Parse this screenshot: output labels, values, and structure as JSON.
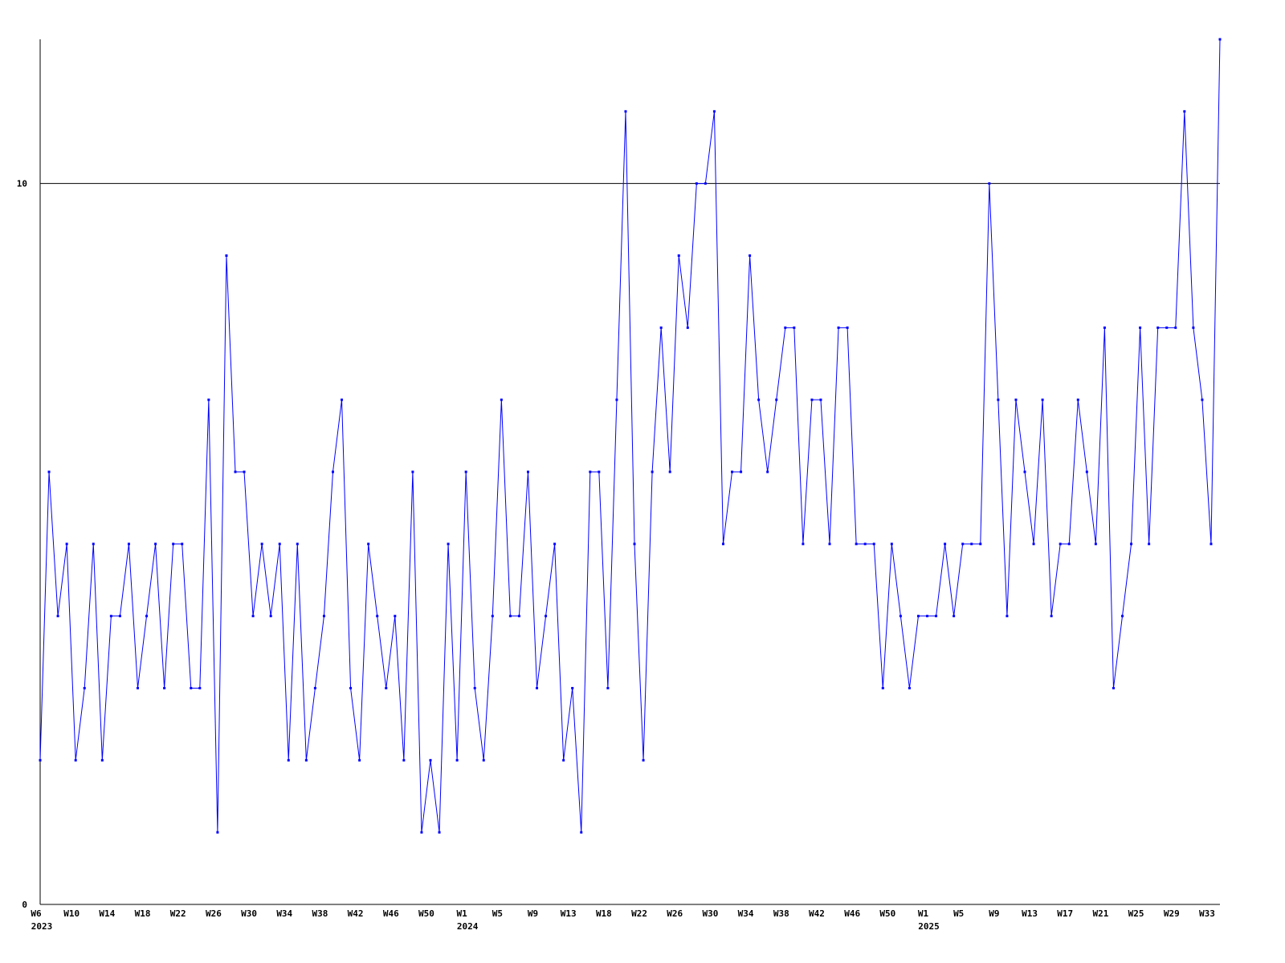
{
  "chart_data": {
    "type": "line",
    "color": "#0000ff",
    "categories": [
      "W6",
      null,
      null,
      null,
      "W10",
      null,
      null,
      null,
      "W14",
      null,
      null,
      null,
      "W18",
      null,
      null,
      null,
      "W22",
      null,
      null,
      null,
      "W26",
      null,
      null,
      null,
      "W30",
      null,
      null,
      null,
      "W34",
      null,
      null,
      null,
      "W38",
      null,
      null,
      null,
      "W42",
      null,
      null,
      null,
      "W46",
      null,
      null,
      null,
      "W50",
      null,
      null,
      null,
      "W1",
      null,
      null,
      null,
      "W5",
      null,
      null,
      null,
      "W9",
      null,
      null,
      null,
      "W13",
      null,
      null,
      null,
      "W18",
      null,
      null,
      null,
      "W22",
      null,
      null,
      null,
      "W26",
      null,
      null,
      null,
      "W30",
      null,
      null,
      null,
      "W34",
      null,
      null,
      null,
      "W38",
      null,
      null,
      null,
      "W42",
      null,
      null,
      null,
      "W46",
      null,
      null,
      null,
      "W50",
      null,
      null,
      null,
      "W1",
      null,
      null,
      null,
      "W5",
      null,
      null,
      null,
      "W9",
      null,
      null,
      null,
      "W13",
      null,
      null,
      null,
      "W17",
      null,
      null,
      null,
      "W21",
      null,
      null,
      null,
      "W25",
      null,
      null,
      null,
      "W29",
      null,
      null,
      null,
      "W33",
      null
    ],
    "x_group_labels": [
      {
        "label": "2023",
        "category": 0
      },
      {
        "label": "2024",
        "category": 48
      },
      {
        "label": "2025",
        "category": 100
      }
    ],
    "values": [
      2,
      6,
      4,
      5,
      2,
      3,
      5,
      2,
      4,
      4,
      5,
      3,
      4,
      5,
      3,
      5,
      5,
      3,
      3,
      7,
      1,
      9,
      6,
      6,
      4,
      5,
      4,
      5,
      2,
      5,
      2,
      3,
      4,
      6,
      7,
      3,
      2,
      5,
      4,
      3,
      4,
      2,
      6,
      1,
      2,
      1,
      5,
      2,
      6,
      3,
      2,
      4,
      7,
      4,
      4,
      6,
      3,
      4,
      5,
      2,
      3,
      1,
      6,
      6,
      3,
      7,
      11,
      5,
      2,
      6,
      8,
      6,
      9,
      8,
      10,
      10,
      11,
      5,
      6,
      6,
      9,
      7,
      6,
      7,
      8,
      8,
      5,
      7,
      7,
      5,
      8,
      8,
      5,
      5,
      5,
      3,
      5,
      4,
      3,
      4,
      4,
      4,
      5,
      4,
      5,
      5,
      5,
      10,
      7,
      4,
      7,
      6,
      5,
      7,
      4,
      5,
      5,
      7,
      6,
      5,
      8,
      3,
      4,
      5,
      8,
      5,
      8,
      8,
      8,
      11,
      8,
      7,
      5,
      12
    ],
    "ylim": [
      0,
      12
    ],
    "yticks": [
      0,
      10
    ],
    "grid": true
  }
}
